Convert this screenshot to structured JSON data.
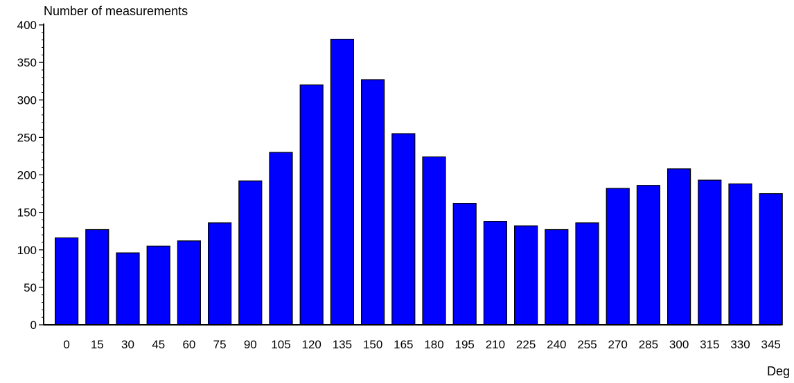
{
  "chart_data": {
    "type": "bar",
    "ylabel": "Number of measurements",
    "xlabel": "Deg",
    "ylim": [
      0,
      400
    ],
    "yticks": [
      0,
      50,
      100,
      150,
      200,
      250,
      300,
      350,
      400
    ],
    "grid": false,
    "bar_color": "#0000ff",
    "categories": [
      "0",
      "15",
      "30",
      "45",
      "60",
      "75",
      "90",
      "105",
      "120",
      "135",
      "150",
      "165",
      "180",
      "195",
      "210",
      "225",
      "240",
      "255",
      "270",
      "285",
      "300",
      "315",
      "330",
      "345"
    ],
    "values": [
      116,
      127,
      96,
      105,
      112,
      136,
      192,
      230,
      320,
      381,
      327,
      255,
      224,
      162,
      138,
      132,
      127,
      136,
      182,
      186,
      208,
      193,
      188,
      175
    ]
  }
}
